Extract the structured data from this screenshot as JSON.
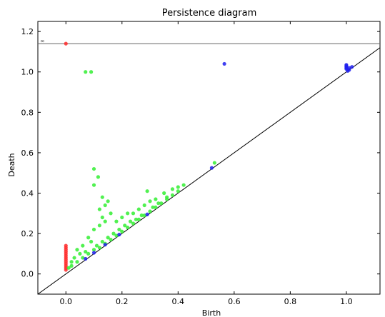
{
  "chart_data": {
    "type": "scatter",
    "title": "Persistence diagram",
    "xlabel": "Birth",
    "ylabel": "Death",
    "xlim": [
      -0.1,
      1.12
    ],
    "ylim": [
      -0.1,
      1.25
    ],
    "x_ticks": [
      "0.0",
      "0.2",
      "0.4",
      "0.6",
      "0.8",
      "1.0"
    ],
    "x_tick_values": [
      0.0,
      0.2,
      0.4,
      0.6,
      0.8,
      1.0
    ],
    "y_ticks": [
      "0.0",
      "0.2",
      "0.4",
      "0.6",
      "0.8",
      "1.0",
      "1.2"
    ],
    "y_tick_values": [
      0.0,
      0.2,
      0.4,
      0.6,
      0.8,
      1.0,
      1.2
    ],
    "grid": false,
    "infinity_line": {
      "label": "∞",
      "y": 1.14
    },
    "diagonal": true,
    "series": [
      {
        "color": "#ff2a2a",
        "points": [
          [
            0.0,
            1.14
          ],
          [
            0.0,
            0.14
          ],
          [
            0.0,
            0.13
          ],
          [
            0.0,
            0.12
          ],
          [
            0.0,
            0.11
          ],
          [
            0.0,
            0.1
          ],
          [
            0.0,
            0.09
          ],
          [
            0.0,
            0.08
          ],
          [
            0.0,
            0.07
          ],
          [
            0.0,
            0.06
          ],
          [
            0.0,
            0.05
          ],
          [
            0.0,
            0.04
          ],
          [
            0.0,
            0.03
          ],
          [
            0.0,
            0.02
          ]
        ]
      },
      {
        "color": "#33ee33",
        "points": [
          [
            0.07,
            1.0
          ],
          [
            0.09,
            1.0
          ],
          [
            0.1,
            0.52
          ],
          [
            0.115,
            0.48
          ],
          [
            0.1,
            0.44
          ],
          [
            0.13,
            0.38
          ],
          [
            0.14,
            0.34
          ],
          [
            0.12,
            0.32
          ],
          [
            0.15,
            0.36
          ],
          [
            0.16,
            0.3
          ],
          [
            0.13,
            0.28
          ],
          [
            0.14,
            0.26
          ],
          [
            0.12,
            0.24
          ],
          [
            0.1,
            0.22
          ],
          [
            0.18,
            0.26
          ],
          [
            0.2,
            0.28
          ],
          [
            0.22,
            0.3
          ],
          [
            0.24,
            0.3
          ],
          [
            0.26,
            0.32
          ],
          [
            0.28,
            0.34
          ],
          [
            0.3,
            0.36
          ],
          [
            0.32,
            0.37
          ],
          [
            0.35,
            0.4
          ],
          [
            0.38,
            0.42
          ],
          [
            0.4,
            0.43
          ],
          [
            0.42,
            0.44
          ],
          [
            0.29,
            0.41
          ],
          [
            0.08,
            0.18
          ],
          [
            0.09,
            0.16
          ],
          [
            0.06,
            0.14
          ],
          [
            0.04,
            0.12
          ],
          [
            0.05,
            0.1
          ],
          [
            0.07,
            0.11
          ],
          [
            0.03,
            0.08
          ],
          [
            0.02,
            0.06
          ],
          [
            0.11,
            0.14
          ],
          [
            0.13,
            0.16
          ],
          [
            0.15,
            0.18
          ],
          [
            0.17,
            0.2
          ],
          [
            0.19,
            0.22
          ],
          [
            0.21,
            0.24
          ],
          [
            0.23,
            0.26
          ],
          [
            0.25,
            0.27
          ],
          [
            0.27,
            0.29
          ],
          [
            0.31,
            0.33
          ],
          [
            0.33,
            0.35
          ],
          [
            0.36,
            0.38
          ],
          [
            0.53,
            0.55
          ],
          [
            0.01,
            0.03
          ],
          [
            0.02,
            0.04
          ],
          [
            0.04,
            0.06
          ],
          [
            0.06,
            0.08
          ],
          [
            0.08,
            0.1
          ],
          [
            0.1,
            0.12
          ],
          [
            0.12,
            0.13
          ],
          [
            0.14,
            0.15
          ],
          [
            0.16,
            0.17
          ],
          [
            0.18,
            0.19
          ],
          [
            0.2,
            0.21
          ],
          [
            0.22,
            0.23
          ],
          [
            0.24,
            0.25
          ],
          [
            0.26,
            0.27
          ],
          [
            0.28,
            0.29
          ],
          [
            0.3,
            0.31
          ],
          [
            0.32,
            0.33
          ],
          [
            0.34,
            0.35
          ],
          [
            0.36,
            0.37
          ],
          [
            0.38,
            0.39
          ],
          [
            0.4,
            0.41
          ]
        ]
      },
      {
        "color": "#2020ee",
        "points": [
          [
            0.565,
            1.04
          ],
          [
            0.52,
            0.525
          ],
          [
            0.29,
            0.295
          ],
          [
            0.19,
            0.195
          ],
          [
            0.1,
            0.105
          ],
          [
            0.07,
            0.075
          ],
          [
            0.14,
            0.145
          ],
          [
            1.0,
            1.035
          ],
          [
            1.0,
            1.03
          ],
          [
            1.0,
            1.025
          ],
          [
            1.0,
            1.02
          ],
          [
            1.0,
            1.015
          ],
          [
            1.01,
            1.01
          ],
          [
            1.005,
            1.005
          ],
          [
            1.01,
            1.02
          ],
          [
            1.02,
            1.025
          ]
        ]
      }
    ]
  }
}
